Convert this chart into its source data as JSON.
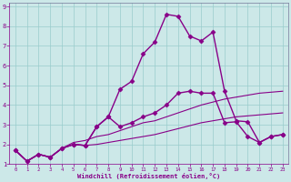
{
  "xlabel": "Windchill (Refroidissement éolien,°C)",
  "background_color": "#cce8e8",
  "line_color": "#880088",
  "grid_color": "#99cccc",
  "xlim": [
    -0.5,
    23.5
  ],
  "ylim": [
    1,
    9.2
  ],
  "xticks": [
    0,
    1,
    2,
    3,
    4,
    5,
    6,
    7,
    8,
    9,
    10,
    11,
    12,
    13,
    14,
    15,
    16,
    17,
    18,
    19,
    20,
    21,
    22,
    23
  ],
  "yticks": [
    1,
    2,
    3,
    4,
    5,
    6,
    7,
    8,
    9
  ],
  "series": [
    {
      "x": [
        0,
        1,
        2,
        3,
        4,
        5,
        6,
        7,
        8,
        9,
        10,
        11,
        12,
        13,
        14,
        15,
        16,
        17,
        18,
        19,
        20,
        21,
        22,
        23
      ],
      "y": [
        1.7,
        1.15,
        1.5,
        1.35,
        1.8,
        2.0,
        1.95,
        2.9,
        3.4,
        4.8,
        5.2,
        6.6,
        7.2,
        8.6,
        8.5,
        7.5,
        7.25,
        7.7,
        4.7,
        3.2,
        3.15,
        2.1,
        2.4,
        2.5
      ],
      "marker": "D",
      "markersize": 2.5,
      "linewidth": 1.0
    },
    {
      "x": [
        0,
        1,
        2,
        3,
        4,
        5,
        6,
        7,
        8,
        9,
        10,
        11,
        12,
        13,
        14,
        15,
        16,
        17,
        18,
        19,
        20,
        21,
        22,
        23
      ],
      "y": [
        1.7,
        1.15,
        1.5,
        1.35,
        1.8,
        2.0,
        1.95,
        2.9,
        3.4,
        2.9,
        3.1,
        3.4,
        3.6,
        4.0,
        4.6,
        4.7,
        4.6,
        4.6,
        3.1,
        3.15,
        2.4,
        2.1,
        2.4,
        2.5
      ],
      "marker": "D",
      "markersize": 2.5,
      "linewidth": 1.0
    },
    {
      "x": [
        0,
        1,
        2,
        3,
        4,
        5,
        6,
        7,
        8,
        9,
        10,
        11,
        12,
        13,
        14,
        15,
        16,
        17,
        18,
        19,
        20,
        21,
        22,
        23
      ],
      "y": [
        1.7,
        1.15,
        1.5,
        1.35,
        1.8,
        2.1,
        2.2,
        2.4,
        2.5,
        2.7,
        2.9,
        3.1,
        3.2,
        3.4,
        3.6,
        3.8,
        4.0,
        4.15,
        4.3,
        4.4,
        4.5,
        4.6,
        4.65,
        4.7
      ],
      "marker": null,
      "markersize": 0,
      "linewidth": 0.8
    },
    {
      "x": [
        0,
        1,
        2,
        3,
        4,
        5,
        6,
        7,
        8,
        9,
        10,
        11,
        12,
        13,
        14,
        15,
        16,
        17,
        18,
        19,
        20,
        21,
        22,
        23
      ],
      "y": [
        1.7,
        1.15,
        1.5,
        1.35,
        1.8,
        2.0,
        1.95,
        2.0,
        2.1,
        2.2,
        2.3,
        2.4,
        2.5,
        2.65,
        2.8,
        2.95,
        3.1,
        3.2,
        3.3,
        3.4,
        3.45,
        3.5,
        3.55,
        3.6
      ],
      "marker": null,
      "markersize": 0,
      "linewidth": 0.8
    }
  ]
}
